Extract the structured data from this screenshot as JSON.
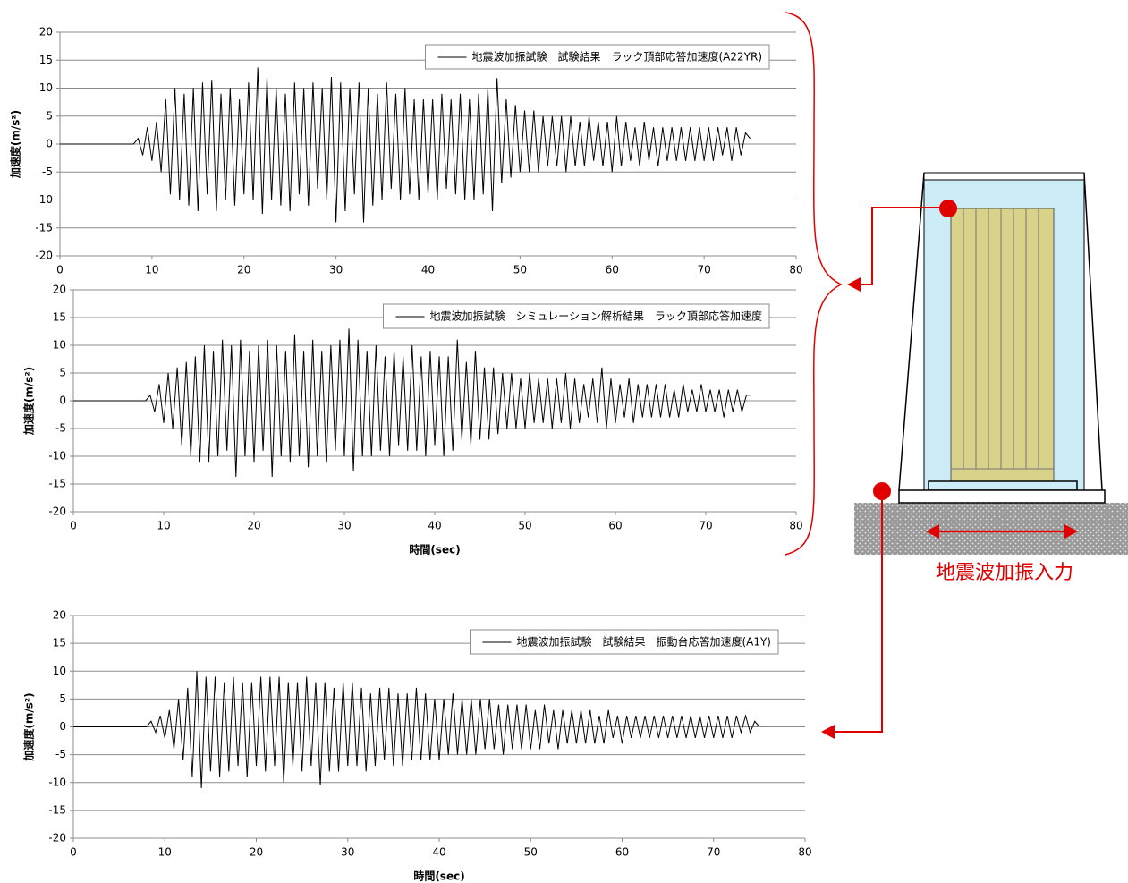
{
  "chart_data": [
    {
      "type": "line",
      "ylabel": "加速度(m/s²)",
      "xlim": [
        0,
        80
      ],
      "ylim": [
        -20,
        20
      ],
      "xticks": [
        0,
        10,
        20,
        30,
        40,
        50,
        60,
        70,
        80
      ],
      "yticks": [
        -20,
        -15,
        -10,
        -5,
        0,
        5,
        10,
        15,
        20
      ],
      "grid": true,
      "x": [
        0,
        8,
        8.5,
        9,
        9.5,
        10,
        10.5,
        11,
        11.5,
        12,
        12.5,
        13,
        13.5,
        14,
        14.5,
        15,
        15.5,
        16,
        16.5,
        17,
        17.5,
        18,
        18.5,
        19,
        19.5,
        20,
        20.5,
        21,
        21.5,
        22,
        22.5,
        23,
        23.5,
        24,
        24.5,
        25,
        25.5,
        26,
        26.5,
        27,
        27.5,
        28,
        28.5,
        29,
        29.5,
        30,
        30.5,
        31,
        31.5,
        32,
        32.5,
        33,
        33.5,
        34,
        34.5,
        35,
        35.5,
        36,
        36.5,
        37,
        37.5,
        38,
        38.5,
        39,
        39.5,
        40,
        40.5,
        41,
        41.5,
        42,
        42.5,
        43,
        43.5,
        44,
        44.5,
        45,
        45.5,
        46,
        46.5,
        47,
        47.5,
        48,
        48.5,
        49,
        49.5,
        50,
        50.5,
        51,
        51.5,
        52,
        52.5,
        53,
        53.5,
        54,
        54.5,
        55,
        55.5,
        56,
        56.5,
        57,
        57.5,
        58,
        58.5,
        59,
        59.5,
        60,
        60.5,
        61,
        61.5,
        62,
        62.5,
        63,
        63.5,
        64,
        64.5,
        65,
        65.5,
        66,
        66.5,
        67,
        67.5,
        68,
        68.5,
        69,
        69.5,
        70,
        70.5,
        71,
        71.5,
        72,
        72.5,
        73,
        73.5,
        74,
        74.5,
        75
      ],
      "series": [
        {
          "name": "地震波加振試験　試験結果　ラック頂部応答加速度(A22YR)",
          "color": "#000000",
          "values": [
            0,
            0,
            1,
            -2,
            3,
            -3,
            4,
            -5,
            8,
            -9,
            10,
            -10,
            9,
            -11,
            10,
            -12,
            11,
            -9,
            11.5,
            -12,
            9,
            -10,
            10,
            -11,
            8,
            -9,
            11,
            -10,
            13.7,
            -12.5,
            12,
            -10,
            10,
            -11,
            9,
            -12,
            11,
            -9,
            10,
            -11,
            11,
            -8,
            10,
            -10,
            12,
            -14,
            11,
            -12,
            10,
            -9,
            11,
            -14,
            10,
            -11,
            9,
            -10,
            11,
            -8,
            9,
            -10,
            10,
            -9,
            8,
            -10,
            8,
            -9,
            8,
            -10,
            9,
            -8,
            8,
            -9,
            9,
            -10,
            8,
            -10,
            9,
            -9,
            10,
            -12,
            11.8,
            -7,
            8,
            -6,
            7,
            -5,
            6,
            -5,
            6,
            -5,
            5,
            -4,
            5,
            -4,
            5,
            -5,
            5,
            -4,
            4,
            -4,
            5,
            -3,
            4,
            -4,
            4,
            -5,
            5,
            -4,
            4,
            -3,
            3,
            -4,
            4,
            -3,
            3,
            -4,
            3,
            -3,
            3,
            -3,
            3,
            -3,
            3,
            -3,
            3,
            -3,
            3,
            -3,
            3,
            -2,
            3,
            -3,
            3,
            -2,
            2,
            1
          ]
        }
      ]
    },
    {
      "type": "line",
      "ylabel": "加速度(m/s²)",
      "xlabel": "時間(sec)",
      "xlim": [
        0,
        80
      ],
      "ylim": [
        -20,
        20
      ],
      "xticks": [
        0,
        10,
        20,
        30,
        40,
        50,
        60,
        70,
        80
      ],
      "yticks": [
        -20,
        -15,
        -10,
        -5,
        0,
        5,
        10,
        15,
        20
      ],
      "grid": true,
      "x": [
        0,
        8,
        8.5,
        9,
        9.5,
        10,
        10.5,
        11,
        11.5,
        12,
        12.5,
        13,
        13.5,
        14,
        14.5,
        15,
        15.5,
        16,
        16.5,
        17,
        17.5,
        18,
        18.5,
        19,
        19.5,
        20,
        20.5,
        21,
        21.5,
        22,
        22.5,
        23,
        23.5,
        24,
        24.5,
        25,
        25.5,
        26,
        26.5,
        27,
        27.5,
        28,
        28.5,
        29,
        29.5,
        30,
        30.5,
        31,
        31.5,
        32,
        32.5,
        33,
        33.5,
        34,
        34.5,
        35,
        35.5,
        36,
        36.5,
        37,
        37.5,
        38,
        38.5,
        39,
        39.5,
        40,
        40.5,
        41,
        41.5,
        42,
        42.5,
        43,
        43.5,
        44,
        44.5,
        45,
        45.5,
        46,
        46.5,
        47,
        47.5,
        48,
        48.5,
        49,
        49.5,
        50,
        50.5,
        51,
        51.5,
        52,
        52.5,
        53,
        53.5,
        54,
        54.5,
        55,
        55.5,
        56,
        56.5,
        57,
        57.5,
        58,
        58.5,
        59,
        59.5,
        60,
        60.5,
        61,
        61.5,
        62,
        62.5,
        63,
        63.5,
        64,
        64.5,
        65,
        65.5,
        66,
        66.5,
        67,
        67.5,
        68,
        68.5,
        69,
        69.5,
        70,
        70.5,
        71,
        71.5,
        72,
        72.5,
        73,
        73.5,
        74,
        74.5,
        75
      ],
      "series": [
        {
          "name": "地震波加振試験　シミュレーション解析結果　ラック頂部応答加速度",
          "color": "#000000",
          "values": [
            0,
            0,
            1,
            -2,
            3,
            -4,
            5,
            -5,
            6,
            -8,
            7,
            -10,
            8,
            -11,
            10,
            -11,
            9,
            -10,
            11,
            -9,
            10,
            -13.7,
            11,
            -10,
            9,
            -11,
            10,
            -9,
            11,
            -13.7,
            10,
            -10,
            9,
            -11,
            12,
            -10,
            9,
            -12,
            11,
            -10,
            9,
            -11,
            10,
            -9,
            11,
            -10,
            13,
            -12.7,
            11,
            -10,
            9,
            -10,
            10,
            -9,
            8,
            -10,
            9,
            -8,
            8,
            -9,
            10,
            -9,
            8,
            -10,
            9,
            -8,
            8,
            -10,
            8,
            -9,
            11,
            -7,
            7,
            -8,
            9,
            -7,
            6,
            -7,
            6,
            -6,
            5,
            -5,
            5,
            -5,
            4,
            -5,
            5,
            -4,
            4,
            -4,
            4,
            -5,
            4,
            -4,
            5,
            -5,
            4,
            -4,
            3,
            -3,
            4,
            -4,
            6,
            -5,
            4,
            -4,
            3,
            -3,
            4,
            -4,
            3,
            -3,
            3,
            -3,
            3,
            -3,
            3,
            -3,
            2,
            -3,
            3,
            -2,
            2,
            -2,
            3,
            -2,
            2,
            -2,
            2,
            -3,
            2,
            -2,
            2,
            -2,
            1,
            1
          ]
        }
      ]
    },
    {
      "type": "line",
      "ylabel": "加速度(m/s²)",
      "xlabel": "時間(sec)",
      "xlim": [
        0,
        80
      ],
      "ylim": [
        -20,
        20
      ],
      "xticks": [
        0,
        10,
        20,
        30,
        40,
        50,
        60,
        70,
        80
      ],
      "yticks": [
        -20,
        -15,
        -10,
        -5,
        0,
        5,
        10,
        15,
        20
      ],
      "grid": true,
      "x": [
        0,
        8,
        8.5,
        9,
        9.5,
        10,
        10.5,
        11,
        11.5,
        12,
        12.5,
        13,
        13.5,
        14,
        14.5,
        15,
        15.5,
        16,
        16.5,
        17,
        17.5,
        18,
        18.5,
        19,
        19.5,
        20,
        20.5,
        21,
        21.5,
        22,
        22.5,
        23,
        23.5,
        24,
        24.5,
        25,
        25.5,
        26,
        26.5,
        27,
        27.5,
        28,
        28.5,
        29,
        29.5,
        30,
        30.5,
        31,
        31.5,
        32,
        32.5,
        33,
        33.5,
        34,
        34.5,
        35,
        35.5,
        36,
        36.5,
        37,
        37.5,
        38,
        38.5,
        39,
        39.5,
        40,
        40.5,
        41,
        41.5,
        42,
        42.5,
        43,
        43.5,
        44,
        44.5,
        45,
        45.5,
        46,
        46.5,
        47,
        47.5,
        48,
        48.5,
        49,
        49.5,
        50,
        50.5,
        51,
        51.5,
        52,
        52.5,
        53,
        53.5,
        54,
        54.5,
        55,
        55.5,
        56,
        56.5,
        57,
        57.5,
        58,
        58.5,
        59,
        59.5,
        60,
        60.5,
        61,
        61.5,
        62,
        62.5,
        63,
        63.5,
        64,
        64.5,
        65,
        65.5,
        66,
        66.5,
        67,
        67.5,
        68,
        68.5,
        69,
        69.5,
        70,
        70.5,
        71,
        71.5,
        72,
        72.5,
        73,
        73.5,
        74,
        74.5,
        75
      ],
      "series": [
        {
          "name": "地震波加振試験　試験結果　振動台応答加速度(A1Y)",
          "color": "#000000",
          "values": [
            0,
            0,
            1,
            -1,
            2,
            -2,
            3,
            -4,
            5,
            -6,
            7,
            -9,
            10,
            -11,
            9,
            -8,
            9,
            -9,
            8,
            -8,
            9,
            -7,
            8,
            -9,
            8,
            -7,
            9,
            -8,
            9,
            -7,
            9,
            -10,
            8,
            -7,
            8,
            -8,
            9,
            -7,
            8,
            -10.5,
            8,
            -8,
            7,
            -8,
            8,
            -7,
            8,
            -7,
            7,
            -8,
            6,
            -7,
            7,
            -6,
            7,
            -7,
            6,
            -7,
            6,
            -6,
            7,
            -6,
            6,
            -6,
            5,
            -6,
            5,
            -5,
            6,
            -5,
            5,
            -5,
            5,
            -5,
            5,
            -4,
            5,
            -4,
            4,
            -5,
            4,
            -4,
            4,
            -4,
            4,
            -4,
            3,
            -4,
            4,
            -3,
            3,
            -4,
            3,
            -3,
            3,
            -3,
            3,
            -3,
            3,
            -3,
            2,
            -3,
            3,
            -2,
            2,
            -3,
            2,
            -2,
            2,
            -2,
            2,
            -2,
            2,
            -2,
            2,
            -2,
            2,
            -2,
            2,
            -2,
            2,
            -2,
            2,
            -2,
            2,
            -2,
            2,
            -2,
            2,
            -2,
            2,
            -1,
            2,
            -1,
            1,
            0
          ]
        }
      ]
    }
  ],
  "diagram": {
    "label": "地震波加振入力"
  }
}
